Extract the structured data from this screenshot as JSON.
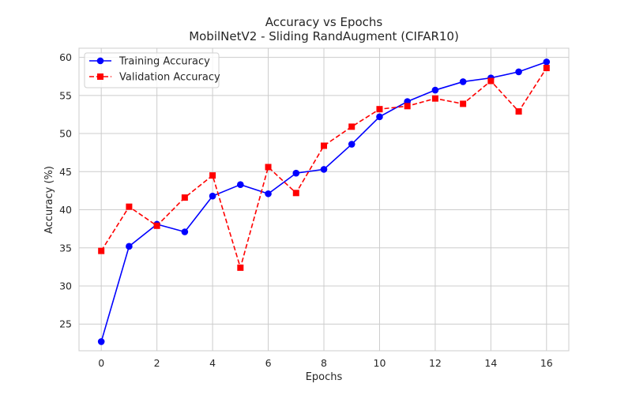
{
  "chart_data": {
    "type": "line",
    "title": "Accuracy vs Epochs",
    "subtitle": "MobilNetV2 - Sliding RandAugment (CIFAR10)",
    "xlabel": "Epochs",
    "ylabel": "Accuracy (%)",
    "xlim": [
      -0.8,
      16.8
    ],
    "ylim": [
      21.5,
      61.2
    ],
    "xticks": [
      0,
      2,
      4,
      6,
      8,
      10,
      12,
      14,
      16
    ],
    "yticks": [
      25,
      30,
      35,
      40,
      45,
      50,
      55,
      60
    ],
    "grid": true,
    "legend_position": "top-left",
    "x": [
      0,
      1,
      2,
      3,
      4,
      5,
      6,
      7,
      8,
      9,
      10,
      11,
      12,
      13,
      14,
      15,
      16
    ],
    "series": [
      {
        "name": "Training Accuracy",
        "color": "#0000ff",
        "line_style": "solid",
        "marker": "circle",
        "values": [
          22.7,
          35.2,
          38.1,
          37.1,
          41.8,
          43.3,
          42.1,
          44.8,
          45.3,
          48.6,
          52.2,
          54.2,
          55.7,
          56.8,
          57.3,
          58.1,
          59.4
        ]
      },
      {
        "name": "Validation Accuracy",
        "color": "#ff0000",
        "line_style": "dashed",
        "marker": "square",
        "values": [
          34.6,
          40.4,
          37.9,
          41.6,
          44.5,
          32.4,
          45.6,
          42.2,
          48.4,
          50.9,
          53.2,
          53.6,
          54.6,
          53.9,
          56.9,
          52.9,
          58.6
        ]
      }
    ]
  }
}
